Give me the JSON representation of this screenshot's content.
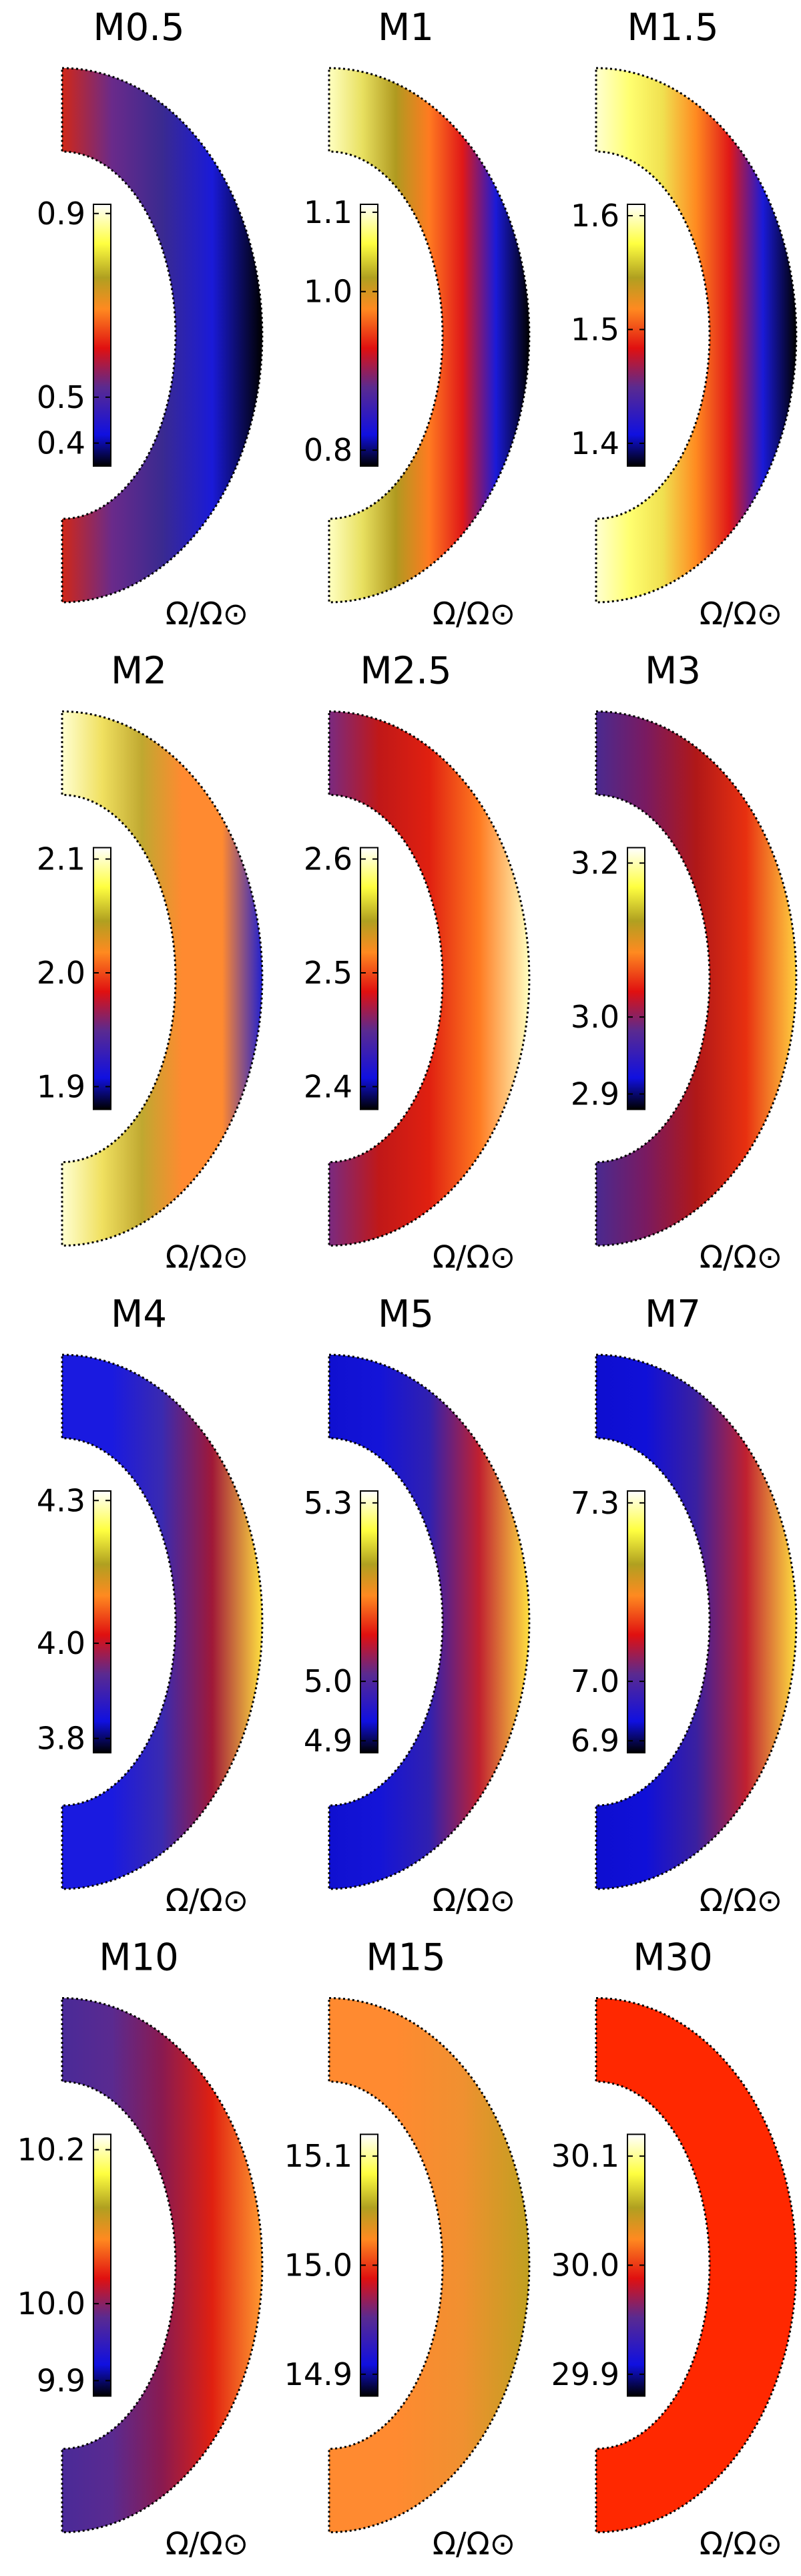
{
  "chart_data": [
    {
      "type": "contour",
      "title": "M0.5",
      "clim": [
        0.35,
        0.92
      ],
      "cticks": [
        0.9,
        0.5,
        0.4
      ],
      "colorbar_label": "Ω/Ω⊙"
    },
    {
      "type": "contour",
      "title": "M1",
      "clim": [
        0.78,
        1.11
      ],
      "cticks": [
        1.1,
        {
          "value": 1,
          "label": "1.0"
        },
        0.8
      ],
      "colorbar_label": "Ω/Ω⊙"
    },
    {
      "type": "contour",
      "title": "M1.5",
      "clim": [
        1.38,
        1.61
      ],
      "cticks": [
        1.6,
        1.5,
        1.4
      ],
      "colorbar_label": "Ω/Ω⊙"
    },
    {
      "type": "contour",
      "title": "M2",
      "clim": [
        1.88,
        2.11
      ],
      "cticks": [
        2.1,
        {
          "value": 2,
          "label": "2.0"
        },
        1.9
      ],
      "colorbar_label": "Ω/Ω⊙"
    },
    {
      "type": "contour",
      "title": "M2.5",
      "clim": [
        2.38,
        2.61
      ],
      "cticks": [
        2.6,
        2.5,
        2.4
      ],
      "colorbar_label": "Ω/Ω⊙"
    },
    {
      "type": "contour",
      "title": "M3",
      "clim": [
        2.88,
        3.22
      ],
      "cticks": [
        3.2,
        {
          "value": 3,
          "label": "3.0"
        },
        2.9
      ],
      "colorbar_label": "Ω/Ω⊙"
    },
    {
      "type": "contour",
      "title": "M4",
      "clim": [
        3.77,
        4.32
      ],
      "cticks": [
        4.3,
        {
          "value": 4,
          "label": "4.0"
        },
        3.8
      ],
      "colorbar_label": "Ω/Ω⊙"
    },
    {
      "type": "contour",
      "title": "M5",
      "clim": [
        4.88,
        5.32
      ],
      "cticks": [
        5.3,
        {
          "value": 5,
          "label": "5.0"
        },
        4.9
      ],
      "colorbar_label": "Ω/Ω⊙"
    },
    {
      "type": "contour",
      "title": "M7",
      "clim": [
        6.88,
        7.32
      ],
      "cticks": [
        7.3,
        {
          "value": 7,
          "label": "7.0"
        },
        6.9
      ],
      "colorbar_label": "Ω/Ω⊙"
    },
    {
      "type": "contour",
      "title": "M10",
      "clim": [
        9.88,
        10.22
      ],
      "cticks": [
        10.2,
        {
          "value": 10,
          "label": "10.0"
        },
        9.9
      ],
      "colorbar_label": "Ω/Ω⊙"
    },
    {
      "type": "contour",
      "title": "M15",
      "clim": [
        14.88,
        15.12
      ],
      "cticks": [
        15.1,
        {
          "value": 15,
          "label": "15.0"
        },
        14.9
      ],
      "colorbar_label": "Ω/Ω⊙"
    },
    {
      "type": "contour",
      "title": "M30",
      "clim": [
        29.88,
        30.12
      ],
      "cticks": [
        30.1,
        {
          "value": 30,
          "label": "30.0"
        },
        29.9
      ],
      "colorbar_label": "Ω/Ω⊙"
    }
  ]
}
